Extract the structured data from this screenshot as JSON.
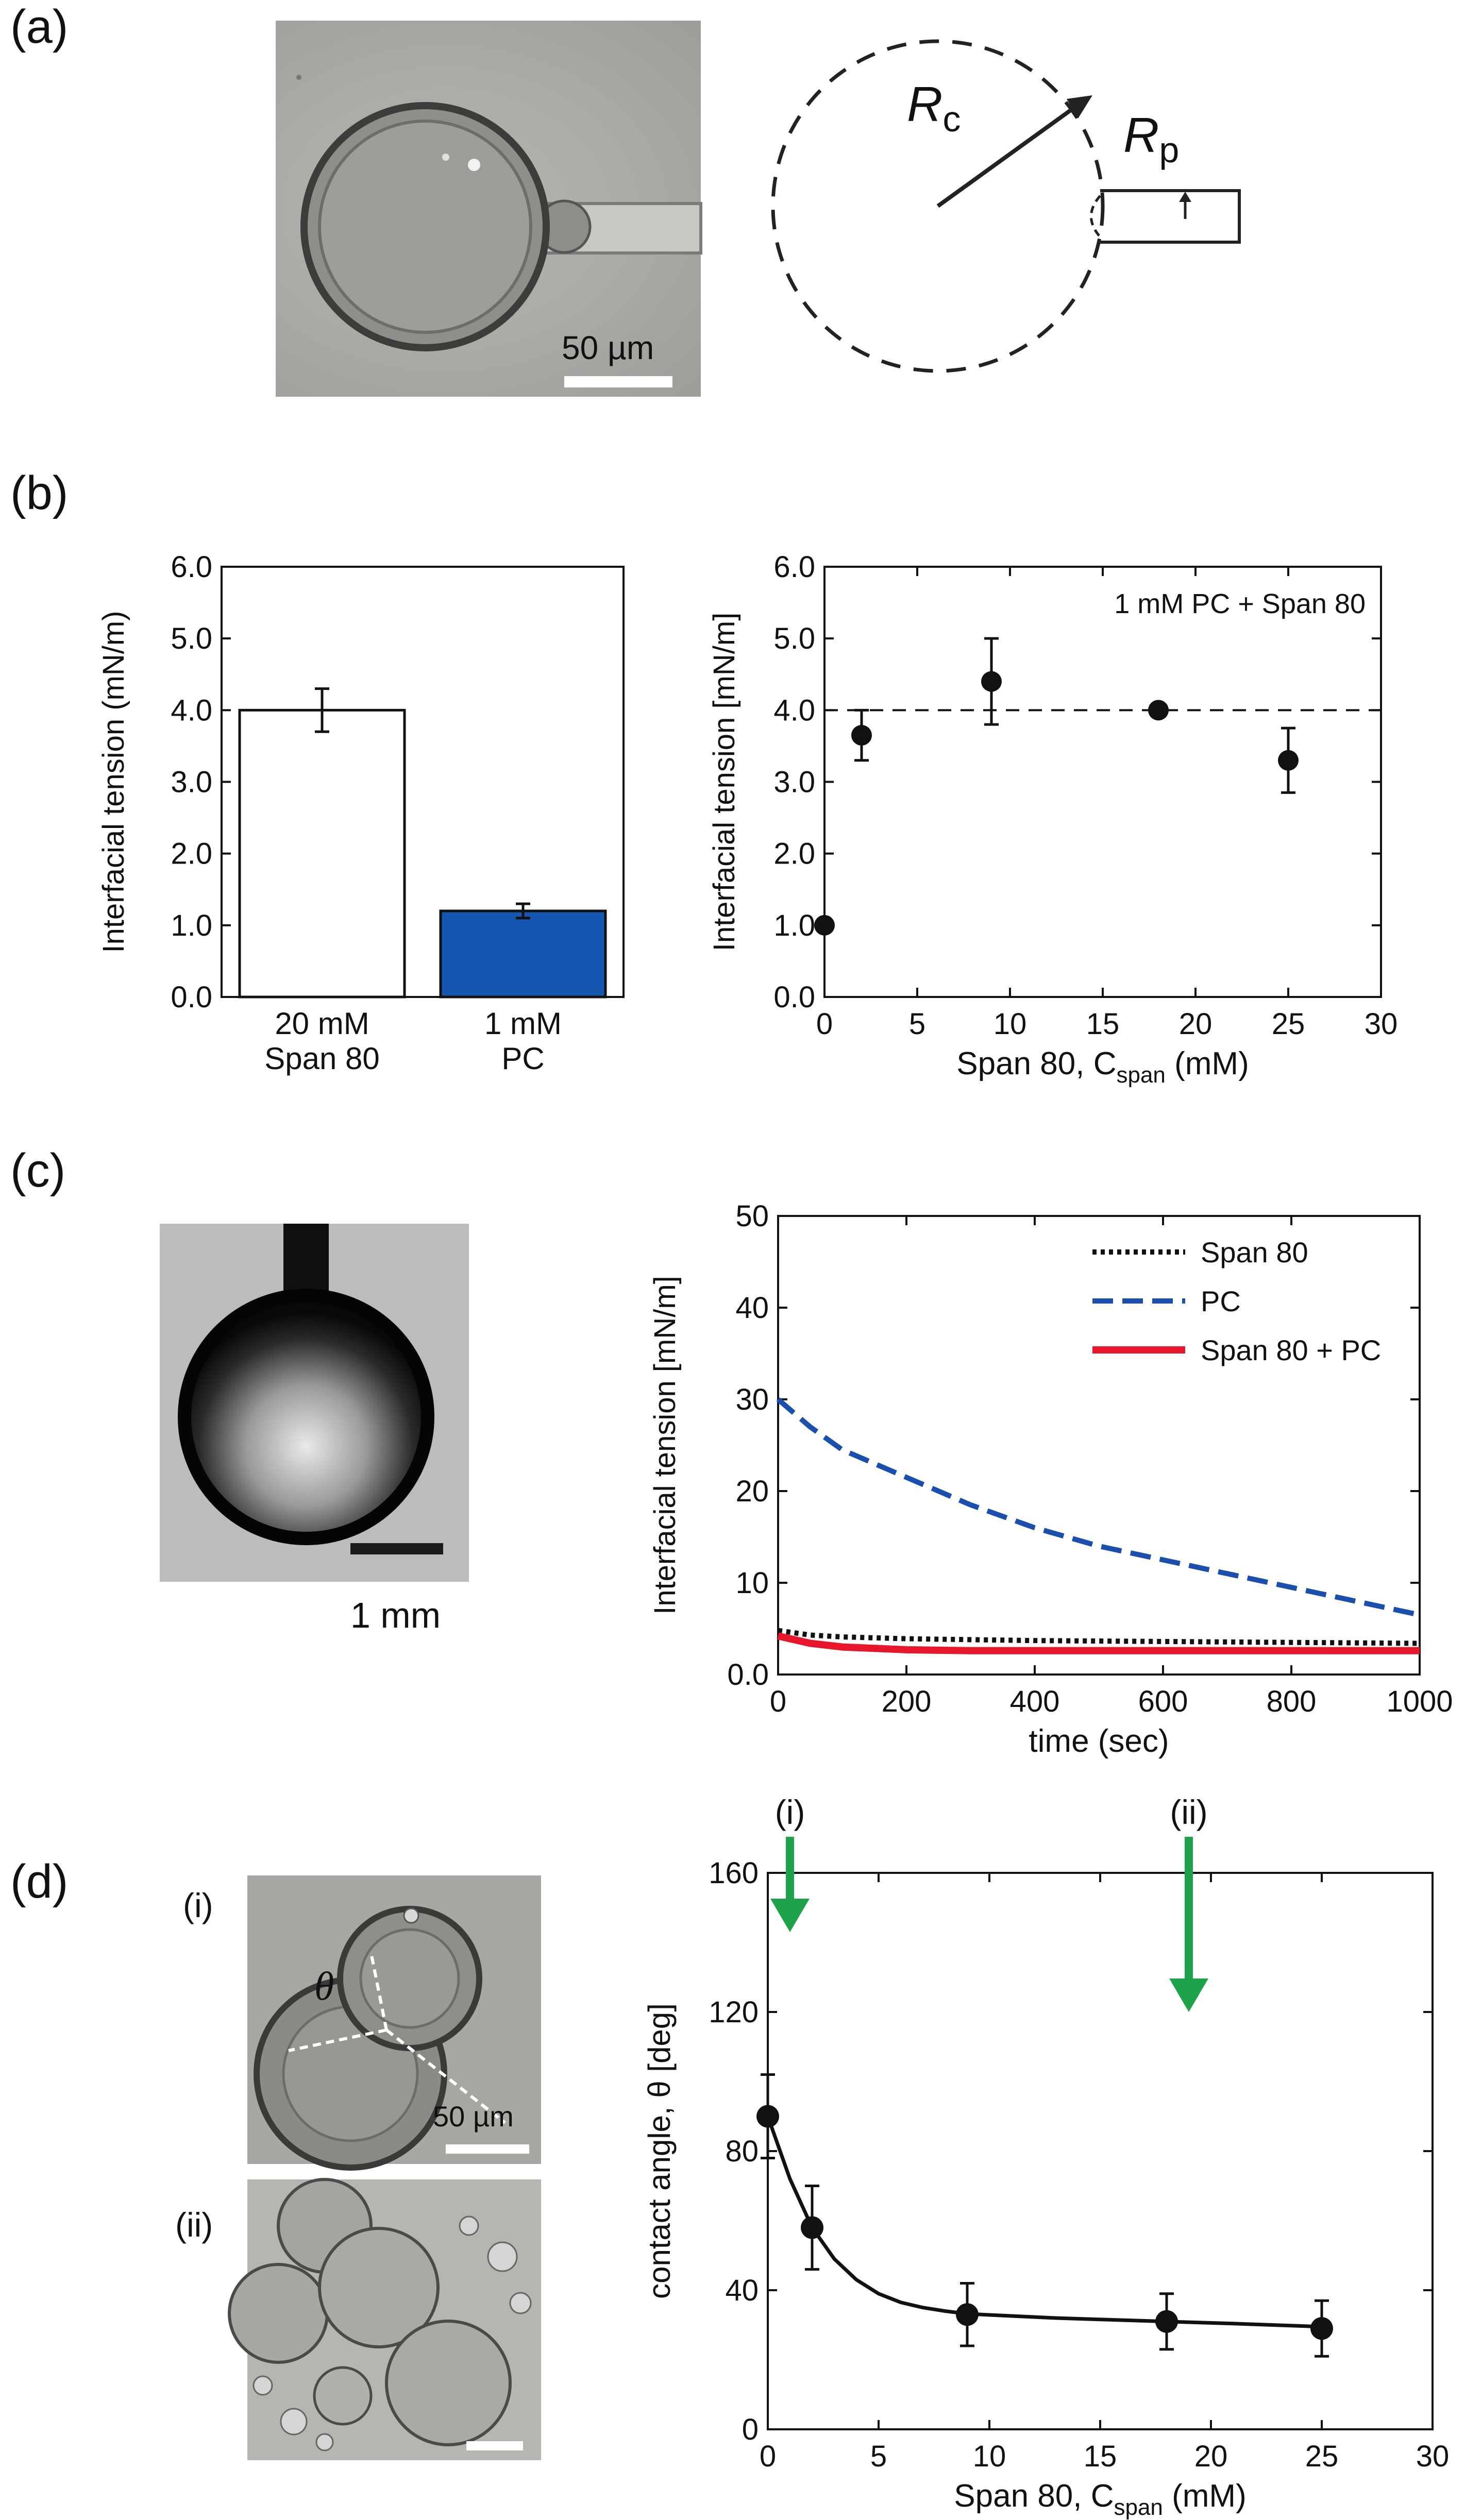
{
  "panels": {
    "a": {
      "label": "(a)",
      "micrograph": {
        "scale_text": "50 µm"
      },
      "schematic": {
        "rc_main": "R",
        "rc_sub": "c",
        "rp_main": "R",
        "rp_sub": "p"
      }
    },
    "b": {
      "label": "(b)"
    },
    "c": {
      "label": "(c)",
      "photo": {
        "scale_text": "1 mm"
      }
    },
    "d": {
      "label": "(d)",
      "sub_i": "(i)",
      "sub_ii": "(ii)",
      "theta": "θ",
      "scale_text": "50 µm"
    }
  },
  "chart_data": [
    {
      "id": "b-left",
      "type": "bar",
      "ylabel": "Interfacial tension (mN/m)",
      "ylim": [
        0,
        6
      ],
      "yticks": [
        "0.0",
        "1.0",
        "2.0",
        "3.0",
        "4.0",
        "5.0",
        "6.0"
      ],
      "categories": [
        "20 mM Span 80",
        "1 mM PC"
      ],
      "category_lines": [
        [
          "20 mM",
          "Span 80"
        ],
        [
          "1 mM",
          "PC"
        ]
      ],
      "values": [
        4.0,
        1.2
      ],
      "errors": [
        0.3,
        0.1
      ],
      "colors": [
        "#ffffff",
        "#1557b0"
      ]
    },
    {
      "id": "b-right",
      "type": "scatter",
      "annotation": "1 mM PC + Span 80",
      "ylabel": "Interfacial tension [mN/m]",
      "xlabel_main": "Span 80, C",
      "xlabel_sub": "span",
      "xlabel_tail": " (mM)",
      "xlim": [
        0,
        30
      ],
      "ylim": [
        0,
        6
      ],
      "xticks": [
        "0",
        "5",
        "10",
        "15",
        "20",
        "25",
        "30"
      ],
      "yticks": [
        "0.0",
        "1.0",
        "2.0",
        "3.0",
        "4.0",
        "5.0",
        "6.0"
      ],
      "x": [
        0,
        2,
        9,
        18,
        25
      ],
      "y": [
        1.0,
        3.65,
        4.4,
        4.0,
        3.3
      ],
      "errors": [
        0,
        0.35,
        0.6,
        0,
        0.45
      ],
      "reference_line": 4.0
    },
    {
      "id": "c",
      "type": "line",
      "ylabel": "Interfacial tension [mN/m]",
      "xlabel": "time (sec)",
      "xlim": [
        0,
        1000
      ],
      "ylim": [
        0,
        50
      ],
      "xticks": [
        "0",
        "200",
        "400",
        "600",
        "800",
        "1000"
      ],
      "yticks": [
        "0.0",
        "10",
        "20",
        "30",
        "40",
        "50"
      ],
      "legend_position": "top-right",
      "series": [
        {
          "name": "Span 80",
          "color": "#111111",
          "dash": "dotted",
          "x": [
            0,
            50,
            100,
            200,
            400,
            600,
            800,
            1000
          ],
          "values": [
            4.8,
            4.3,
            4.1,
            3.9,
            3.7,
            3.6,
            3.5,
            3.4
          ]
        },
        {
          "name": "PC",
          "color": "#1a4fae",
          "dash": "dashed",
          "x": [
            0,
            50,
            100,
            150,
            200,
            300,
            400,
            500,
            600,
            700,
            800,
            900,
            1000
          ],
          "values": [
            30,
            27,
            24.5,
            23,
            21.5,
            18.5,
            16,
            14,
            12.5,
            11,
            9.5,
            8,
            6.5
          ]
        },
        {
          "name": "Span 80 + PC",
          "color": "#e8162a",
          "dash": "solid",
          "x": [
            0,
            50,
            100,
            200,
            300,
            500,
            700,
            1000
          ],
          "values": [
            4.2,
            3.4,
            3.0,
            2.7,
            2.6,
            2.6,
            2.6,
            2.6
          ]
        }
      ]
    },
    {
      "id": "d",
      "type": "scatter",
      "ylabel": "contact angle, θ [deg]",
      "xlabel_main": "Span 80, C",
      "xlabel_sub": "span",
      "xlabel_tail": " (mM)",
      "xlim": [
        0,
        30
      ],
      "ylim": [
        0,
        160
      ],
      "xticks": [
        "0",
        "5",
        "10",
        "15",
        "20",
        "25",
        "30"
      ],
      "yticks": [
        "0",
        "40",
        "80",
        "120",
        "160"
      ],
      "x": [
        0,
        2,
        9,
        18,
        25
      ],
      "y": [
        90,
        58,
        33,
        31,
        29
      ],
      "errors": [
        12,
        12,
        9,
        8,
        8
      ],
      "fit_x": [
        0,
        1,
        2,
        3,
        4,
        5,
        6,
        7,
        8,
        9,
        11,
        13,
        15,
        18,
        21,
        25
      ],
      "fit_y": [
        90,
        72,
        58,
        49,
        43,
        39,
        36.5,
        35,
        34,
        33.2,
        32.6,
        32,
        31.6,
        31,
        30.4,
        29.5
      ],
      "markers": [
        {
          "label": "(i)",
          "x": 1.0,
          "color": "#1fa34a"
        },
        {
          "label": "(ii)",
          "x": 19.0,
          "color": "#1fa34a"
        }
      ]
    }
  ]
}
